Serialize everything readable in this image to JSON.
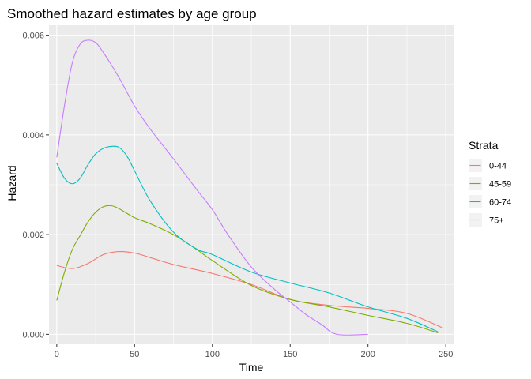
{
  "chart_data": {
    "type": "line",
    "title": "Smoothed hazard estimates by age group",
    "xlabel": "Time",
    "ylabel": "Hazard",
    "xlim": [
      -5,
      255
    ],
    "ylim": [
      -0.0002,
      0.0062
    ],
    "x_ticks": [
      0,
      50,
      100,
      150,
      200,
      250
    ],
    "x_tick_labels": [
      "0",
      "50",
      "100",
      "150",
      "200",
      "250"
    ],
    "y_ticks": [
      0,
      0.002,
      0.004,
      0.006
    ],
    "y_tick_labels": [
      "0.000",
      "0.002",
      "0.004",
      "0.006"
    ],
    "grid": true,
    "panel_background": "#ebebeb",
    "legend": {
      "title": "Strata",
      "placement": "right"
    },
    "series": [
      {
        "name": "0-44",
        "color": "#F8766D",
        "x": [
          0,
          10,
          20,
          30,
          40,
          50,
          60,
          75,
          100,
          125,
          150,
          175,
          200,
          225,
          248
        ],
        "y": [
          0.00138,
          0.00132,
          0.00142,
          0.0016,
          0.00166,
          0.00163,
          0.00154,
          0.0014,
          0.00122,
          0.001,
          0.0007,
          0.00058,
          0.00052,
          0.00042,
          0.00013
        ]
      },
      {
        "name": "45-59",
        "color": "#7CAE00",
        "x": [
          0,
          5,
          10,
          15,
          20,
          25,
          30,
          35,
          40,
          50,
          60,
          75,
          90,
          100,
          125,
          150,
          175,
          200,
          225,
          245
        ],
        "y": [
          0.00068,
          0.00125,
          0.0017,
          0.00198,
          0.00225,
          0.00245,
          0.00256,
          0.00258,
          0.00252,
          0.00234,
          0.00222,
          0.002,
          0.0017,
          0.00148,
          0.00098,
          0.0007,
          0.00055,
          0.00038,
          0.00022,
          3e-05
        ]
      },
      {
        "name": "60-74",
        "color": "#00BFC4",
        "x": [
          0,
          5,
          10,
          15,
          20,
          25,
          30,
          35,
          40,
          45,
          50,
          60,
          75,
          90,
          100,
          125,
          150,
          175,
          200,
          225,
          245
        ],
        "y": [
          0.00343,
          0.00313,
          0.00302,
          0.00313,
          0.0034,
          0.00362,
          0.00373,
          0.00377,
          0.00375,
          0.00358,
          0.00328,
          0.00268,
          0.00205,
          0.00171,
          0.0016,
          0.00125,
          0.00103,
          0.00083,
          0.00055,
          0.00032,
          5e-05
        ]
      },
      {
        "name": "75+",
        "color": "#C77CFF",
        "x": [
          0,
          5,
          10,
          15,
          20,
          25,
          30,
          40,
          50,
          60,
          75,
          90,
          100,
          110,
          125,
          140,
          150,
          160,
          170,
          180,
          200
        ],
        "y": [
          0.00355,
          0.0046,
          0.00545,
          0.00582,
          0.0059,
          0.00585,
          0.00565,
          0.00515,
          0.00458,
          0.00412,
          0.00352,
          0.0029,
          0.0025,
          0.002,
          0.00135,
          0.0009,
          0.00065,
          0.0004,
          0.0002,
          0.0,
          0.0
        ]
      }
    ]
  }
}
